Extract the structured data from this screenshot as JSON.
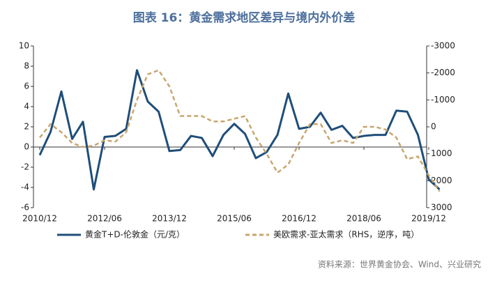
{
  "chart_data": {
    "type": "line",
    "title": "图表 16：黄金需求地区差异与境内外价差",
    "source": "资料来源：世界黄金协会、Wind、兴业研究",
    "categories": [
      "2010/12",
      null,
      null,
      null,
      null,
      null,
      "2012/06",
      null,
      null,
      null,
      null,
      null,
      "2013/12",
      null,
      null,
      null,
      null,
      null,
      "2015/06",
      null,
      null,
      null,
      null,
      null,
      "2016/12",
      null,
      null,
      null,
      null,
      null,
      "2018/06",
      null,
      null,
      null,
      null,
      null,
      "2019/12",
      null
    ],
    "ylim": [
      -6,
      10
    ],
    "yticks": [
      10,
      8,
      6,
      4,
      2,
      0,
      -2,
      -4,
      -6
    ],
    "y2lim": [
      -3000,
      3000
    ],
    "y2ticks": [
      -3000,
      -2000,
      -1000,
      0,
      1000,
      2000,
      3000
    ],
    "y2_inverted": true,
    "series": [
      {
        "name": "黄金T+D-伦敦金（元/克）",
        "color": "#1f4e79",
        "dashed": false,
        "values": [
          -0.8,
          1.5,
          5.5,
          0.8,
          2.5,
          -4.2,
          1.0,
          1.1,
          1.8,
          7.6,
          4.5,
          3.5,
          -0.4,
          -0.3,
          1.1,
          0.9,
          -0.9,
          1.2,
          2.3,
          1.3,
          -1.1,
          -0.5,
          1.2,
          5.3,
          1.8,
          2.0,
          3.4,
          1.7,
          2.1,
          0.9,
          1.1,
          1.2,
          1.2,
          3.6,
          3.5,
          1.2,
          -3.2,
          -4.2
        ]
      },
      {
        "name": "美欧需求-亚太需求（RHS，逆序，吨）",
        "color": "#c8a56e",
        "dashed": true,
        "axis": "y2",
        "values": [
          400,
          -100,
          200,
          600,
          750,
          700,
          500,
          550,
          200,
          -1000,
          -1950,
          -2100,
          -1500,
          -400,
          -400,
          -400,
          -200,
          -200,
          -300,
          -400,
          400,
          1000,
          1700,
          1400,
          600,
          -100,
          -100,
          600,
          500,
          600,
          0,
          0,
          100,
          400,
          1200,
          1100,
          1800,
          2400
        ]
      }
    ]
  }
}
